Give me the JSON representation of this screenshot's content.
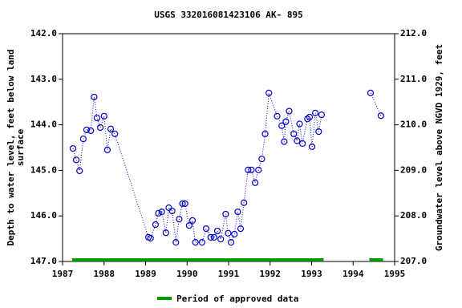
{
  "chart_data": {
    "type": "line",
    "title": "USGS 332016081423106 AK- 895",
    "ylabel": [
      "Depth to water level, feet below land",
      "surface"
    ],
    "y2label": "Groundwater level above NGVD 1929, feet",
    "xlim": [
      1987,
      1995
    ],
    "xticks": [
      1987,
      1988,
      1989,
      1990,
      1991,
      1992,
      1993,
      1994,
      1995
    ],
    "ylim": [
      142,
      147
    ],
    "yticks": [
      {
        "value": 142,
        "label": "142.0"
      },
      {
        "value": 143,
        "label": "143.0"
      },
      {
        "value": 144,
        "label": "144.0"
      },
      {
        "value": 145,
        "label": "145.0"
      },
      {
        "value": 146,
        "label": "146.0"
      },
      {
        "value": 147,
        "label": "147.0"
      }
    ],
    "y2lim": [
      212,
      207
    ],
    "y2ticks": [
      {
        "value": 212,
        "label": "212.0"
      },
      {
        "value": 211,
        "label": "211.0"
      },
      {
        "value": 210,
        "label": "210.0"
      },
      {
        "value": 209,
        "label": "209.0"
      },
      {
        "value": 208,
        "label": "208.0"
      },
      {
        "value": 207,
        "label": "207.0"
      }
    ],
    "series": [
      {
        "color": "#0000cc",
        "x": [
          1987.25,
          1987.33,
          1987.41,
          1987.5,
          1987.58,
          1987.68,
          1987.76,
          1987.83,
          1987.91,
          1988.0,
          1988.08,
          1988.16,
          1988.26,
          1989.07,
          1989.12,
          1989.24,
          1989.31,
          1989.39,
          1989.49,
          1989.56,
          1989.64,
          1989.73,
          1989.81,
          1989.89,
          1989.95,
          1990.05,
          1990.13,
          1990.2,
          1990.36,
          1990.46,
          1990.57,
          1990.65,
          1990.73,
          1990.81,
          1990.93,
          1990.99,
          1991.06,
          1991.14,
          1991.22,
          1991.29,
          1991.37,
          1991.47,
          1991.55,
          1991.64,
          1991.72,
          1991.8,
          1991.88,
          1991.97,
          1992.17,
          1992.28,
          1992.34,
          1992.38,
          1992.46,
          1992.57,
          1992.65,
          1992.71,
          1992.78,
          1992.9,
          1992.95,
          1993.01,
          1993.09,
          1993.17,
          1993.24,
          null,
          1994.42,
          1994.67
        ],
        "values": [
          144.52,
          144.77,
          145.01,
          144.31,
          144.11,
          144.13,
          143.39,
          143.85,
          144.06,
          143.81,
          144.55,
          144.09,
          144.2,
          146.47,
          146.49,
          146.19,
          145.94,
          145.91,
          146.37,
          145.82,
          145.89,
          146.58,
          146.07,
          145.73,
          145.73,
          146.21,
          146.1,
          146.58,
          146.58,
          146.28,
          146.47,
          146.47,
          146.33,
          146.51,
          145.96,
          146.38,
          146.58,
          146.4,
          145.91,
          146.28,
          145.71,
          144.99,
          144.99,
          145.27,
          144.99,
          144.75,
          144.2,
          143.3,
          143.81,
          144.02,
          144.37,
          143.93,
          143.7,
          144.2,
          144.35,
          143.98,
          144.41,
          143.87,
          143.83,
          144.48,
          143.74,
          144.15,
          143.78,
          null,
          143.3,
          143.8
        ]
      }
    ],
    "approved": {
      "name": "Period of approved data",
      "color": "#009900",
      "periods": [
        [
          1987.23,
          1993.29
        ],
        [
          1994.39,
          1994.72
        ]
      ]
    }
  }
}
